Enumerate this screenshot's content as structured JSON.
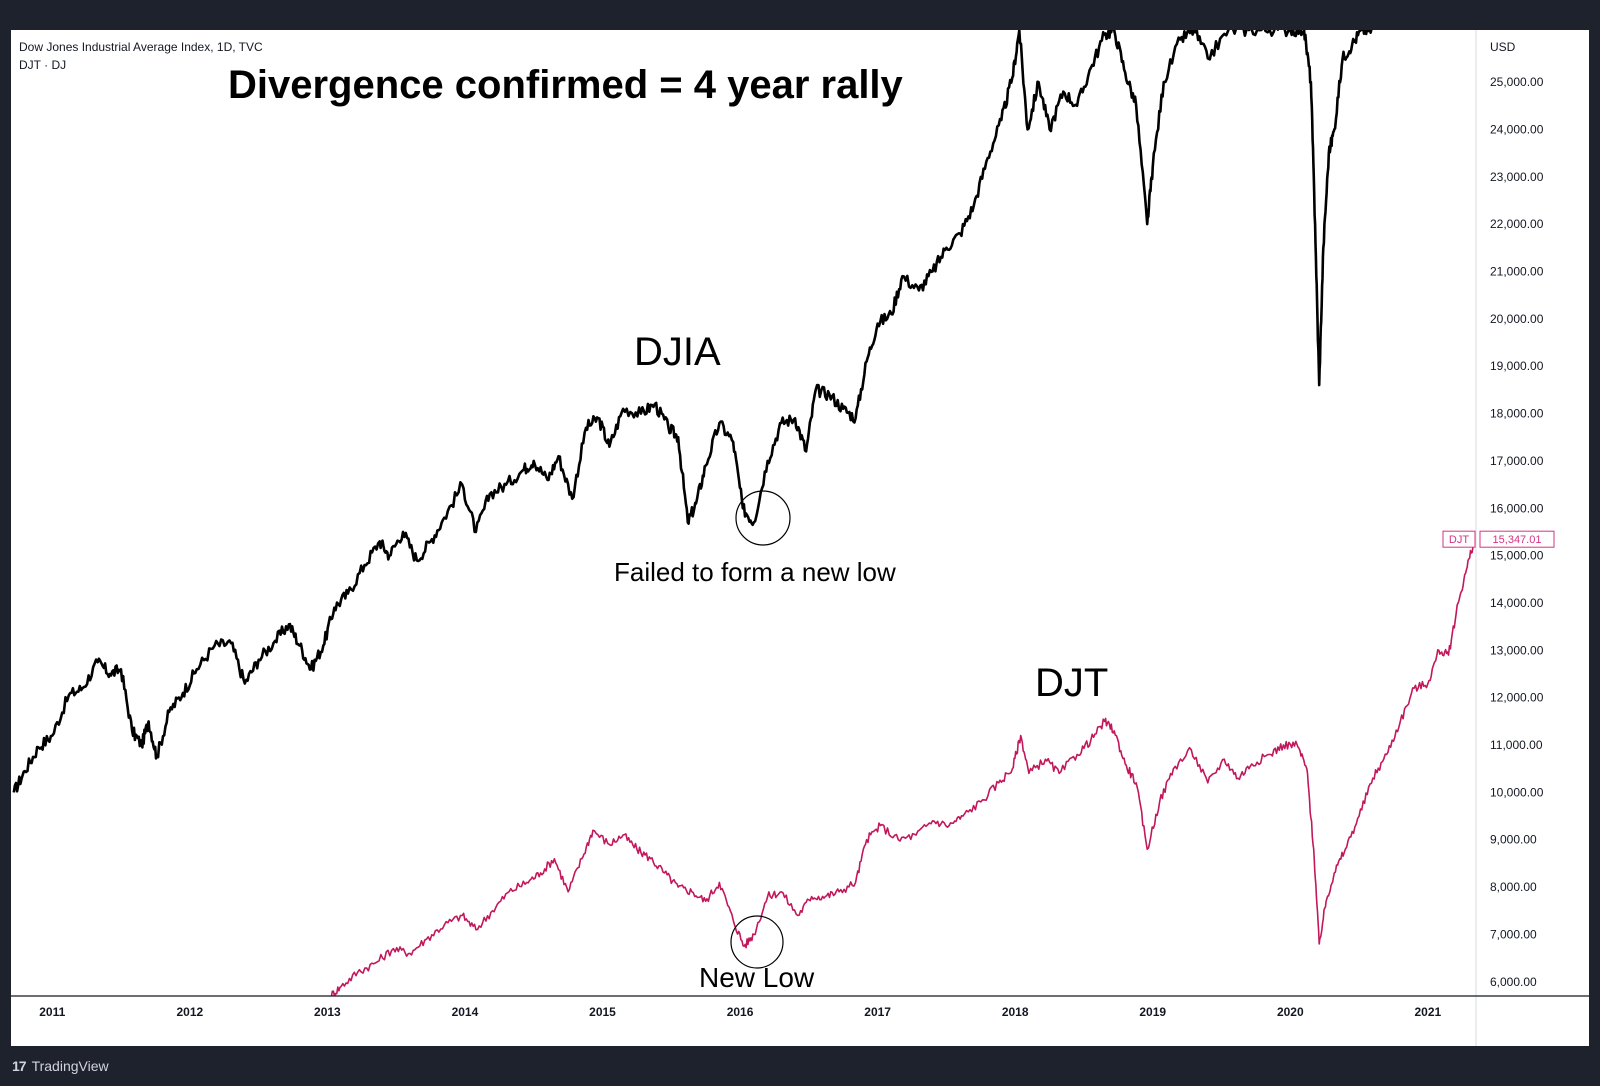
{
  "header": {
    "instrument": "Dow Jones Industrial Average Index, 1D, TVC",
    "compare": "DJT · DJ"
  },
  "brand": "TradingView",
  "currency": "USD",
  "colors": {
    "djia": "#000000",
    "djt": "#c2185b",
    "axis": "#131722",
    "badge": "#d63384"
  },
  "chart_data": {
    "type": "line",
    "title": "Divergence confirmed = 4 year rally",
    "xlabel": "",
    "ylabel": "",
    "x_ticks": [
      "2011",
      "2012",
      "2013",
      "2014",
      "2015",
      "2016",
      "2017",
      "2018",
      "2019",
      "2020",
      "2021"
    ],
    "y_ticks": [
      6000,
      7000,
      8000,
      9000,
      10000,
      11000,
      12000,
      13000,
      14000,
      15000,
      16000,
      17000,
      18000,
      19000,
      20000,
      21000,
      22000,
      23000,
      24000,
      25000
    ],
    "ylim": [
      5700,
      26100
    ],
    "xlim": [
      2010.7,
      2021.35
    ],
    "series": [
      {
        "name": "DJIA",
        "values": [
          [
            2010.72,
            10000
          ],
          [
            2010.8,
            10450
          ],
          [
            2010.9,
            10950
          ],
          [
            2011.0,
            11200
          ],
          [
            2011.12,
            12050
          ],
          [
            2011.22,
            12200
          ],
          [
            2011.33,
            12750
          ],
          [
            2011.42,
            12500
          ],
          [
            2011.5,
            12600
          ],
          [
            2011.58,
            11300
          ],
          [
            2011.65,
            11000
          ],
          [
            2011.7,
            11500
          ],
          [
            2011.76,
            10750
          ],
          [
            2011.85,
            11700
          ],
          [
            2011.95,
            12100
          ],
          [
            2012.05,
            12600
          ],
          [
            2012.18,
            13100
          ],
          [
            2012.3,
            13150
          ],
          [
            2012.4,
            12300
          ],
          [
            2012.5,
            12800
          ],
          [
            2012.62,
            13200
          ],
          [
            2012.72,
            13550
          ],
          [
            2012.8,
            13100
          ],
          [
            2012.88,
            12600
          ],
          [
            2012.97,
            13100
          ],
          [
            2013.05,
            13900
          ],
          [
            2013.15,
            14200
          ],
          [
            2013.27,
            14800
          ],
          [
            2013.38,
            15300
          ],
          [
            2013.45,
            15000
          ],
          [
            2013.55,
            15500
          ],
          [
            2013.65,
            14900
          ],
          [
            2013.75,
            15300
          ],
          [
            2013.85,
            15800
          ],
          [
            2013.98,
            16500
          ],
          [
            2014.08,
            15500
          ],
          [
            2014.18,
            16300
          ],
          [
            2014.3,
            16500
          ],
          [
            2014.42,
            16800
          ],
          [
            2014.5,
            17000
          ],
          [
            2014.6,
            16600
          ],
          [
            2014.68,
            17100
          ],
          [
            2014.78,
            16200
          ],
          [
            2014.88,
            17700
          ],
          [
            2014.97,
            17900
          ],
          [
            2015.05,
            17300
          ],
          [
            2015.15,
            18100
          ],
          [
            2015.28,
            18000
          ],
          [
            2015.38,
            18200
          ],
          [
            2015.48,
            17700
          ],
          [
            2015.55,
            17500
          ],
          [
            2015.62,
            15700
          ],
          [
            2015.68,
            16100
          ],
          [
            2015.75,
            16900
          ],
          [
            2015.85,
            17800
          ],
          [
            2015.95,
            17400
          ],
          [
            2016.02,
            16000
          ],
          [
            2016.1,
            15700
          ],
          [
            2016.2,
            17000
          ],
          [
            2016.3,
            17800
          ],
          [
            2016.4,
            17900
          ],
          [
            2016.48,
            17200
          ],
          [
            2016.55,
            18500
          ],
          [
            2016.65,
            18400
          ],
          [
            2016.75,
            18100
          ],
          [
            2016.84,
            17900
          ],
          [
            2016.92,
            19100
          ],
          [
            2017.0,
            19900
          ],
          [
            2017.1,
            20100
          ],
          [
            2017.18,
            20900
          ],
          [
            2017.3,
            20600
          ],
          [
            2017.4,
            21000
          ],
          [
            2017.5,
            21500
          ],
          [
            2017.6,
            21800
          ],
          [
            2017.7,
            22400
          ],
          [
            2017.8,
            23400
          ],
          [
            2017.9,
            24200
          ],
          [
            2017.98,
            25100
          ],
          [
            2018.03,
            26100
          ],
          [
            2018.09,
            24000
          ],
          [
            2018.17,
            25000
          ],
          [
            2018.25,
            24000
          ],
          [
            2018.35,
            24800
          ],
          [
            2018.45,
            24500
          ],
          [
            2018.55,
            25300
          ],
          [
            2018.65,
            26000
          ],
          [
            2018.72,
            26100
          ],
          [
            2018.8,
            25200
          ],
          [
            2018.88,
            24500
          ],
          [
            2018.96,
            22000
          ],
          [
            2019.0,
            23200
          ],
          [
            2019.08,
            25000
          ],
          [
            2019.2,
            25900
          ],
          [
            2019.3,
            26100
          ],
          [
            2019.4,
            25500
          ],
          [
            2019.55,
            26100
          ],
          [
            2019.7,
            26100
          ],
          [
            2019.85,
            26100
          ],
          [
            2020.0,
            26100
          ],
          [
            2020.1,
            26100
          ],
          [
            2020.15,
            25000
          ],
          [
            2020.18,
            22000
          ],
          [
            2020.21,
            18600
          ],
          [
            2020.24,
            21500
          ],
          [
            2020.28,
            23500
          ],
          [
            2020.32,
            24000
          ],
          [
            2020.38,
            25500
          ],
          [
            2020.45,
            25800
          ],
          [
            2020.52,
            26100
          ],
          [
            2020.6,
            26100
          ]
        ]
      },
      {
        "name": "DJT",
        "values": [
          [
            2013.02,
            5700
          ],
          [
            2013.1,
            5900
          ],
          [
            2013.22,
            6200
          ],
          [
            2013.35,
            6400
          ],
          [
            2013.48,
            6700
          ],
          [
            2013.6,
            6600
          ],
          [
            2013.72,
            6900
          ],
          [
            2013.85,
            7200
          ],
          [
            2013.98,
            7400
          ],
          [
            2014.08,
            7100
          ],
          [
            2014.2,
            7500
          ],
          [
            2014.32,
            7900
          ],
          [
            2014.45,
            8100
          ],
          [
            2014.55,
            8300
          ],
          [
            2014.65,
            8600
          ],
          [
            2014.75,
            7900
          ],
          [
            2014.85,
            8600
          ],
          [
            2014.93,
            9200
          ],
          [
            2015.05,
            8900
          ],
          [
            2015.15,
            9100
          ],
          [
            2015.25,
            8800
          ],
          [
            2015.35,
            8600
          ],
          [
            2015.45,
            8300
          ],
          [
            2015.55,
            8000
          ],
          [
            2015.65,
            7900
          ],
          [
            2015.75,
            7700
          ],
          [
            2015.85,
            8100
          ],
          [
            2015.95,
            7300
          ],
          [
            2016.03,
            6750
          ],
          [
            2016.1,
            7000
          ],
          [
            2016.2,
            7800
          ],
          [
            2016.3,
            7900
          ],
          [
            2016.42,
            7400
          ],
          [
            2016.52,
            7800
          ],
          [
            2016.62,
            7800
          ],
          [
            2016.72,
            7900
          ],
          [
            2016.84,
            8100
          ],
          [
            2016.92,
            9000
          ],
          [
            2017.02,
            9300
          ],
          [
            2017.15,
            9000
          ],
          [
            2017.28,
            9100
          ],
          [
            2017.4,
            9400
          ],
          [
            2017.52,
            9300
          ],
          [
            2017.62,
            9500
          ],
          [
            2017.75,
            9800
          ],
          [
            2017.88,
            10200
          ],
          [
            2017.98,
            10500
          ],
          [
            2018.04,
            11200
          ],
          [
            2018.1,
            10400
          ],
          [
            2018.22,
            10700
          ],
          [
            2018.32,
            10400
          ],
          [
            2018.45,
            10800
          ],
          [
            2018.55,
            11100
          ],
          [
            2018.65,
            11500
          ],
          [
            2018.72,
            11300
          ],
          [
            2018.8,
            10600
          ],
          [
            2018.88,
            10200
          ],
          [
            2018.96,
            8800
          ],
          [
            2019.05,
            9800
          ],
          [
            2019.15,
            10500
          ],
          [
            2019.28,
            10900
          ],
          [
            2019.4,
            10200
          ],
          [
            2019.52,
            10700
          ],
          [
            2019.62,
            10300
          ],
          [
            2019.72,
            10600
          ],
          [
            2019.85,
            10800
          ],
          [
            2019.95,
            11000
          ],
          [
            2020.05,
            11000
          ],
          [
            2020.12,
            10500
          ],
          [
            2020.17,
            8800
          ],
          [
            2020.21,
            6800
          ],
          [
            2020.26,
            7700
          ],
          [
            2020.32,
            8300
          ],
          [
            2020.4,
            8800
          ],
          [
            2020.5,
            9500
          ],
          [
            2020.6,
            10300
          ],
          [
            2020.7,
            10800
          ],
          [
            2020.8,
            11500
          ],
          [
            2020.9,
            12200
          ],
          [
            2021.0,
            12300
          ],
          [
            2021.08,
            13000
          ],
          [
            2021.15,
            12900
          ],
          [
            2021.22,
            14000
          ],
          [
            2021.28,
            14700
          ],
          [
            2021.34,
            15347
          ]
        ]
      }
    ],
    "annotations": [
      {
        "text": "DJIA"
      },
      {
        "text": "Failed to form a new low"
      },
      {
        "text": "DJT"
      },
      {
        "text": "New Low"
      }
    ],
    "last_value_badge": {
      "series": "DJT",
      "label": "DJT",
      "value": "15,347.01"
    }
  }
}
